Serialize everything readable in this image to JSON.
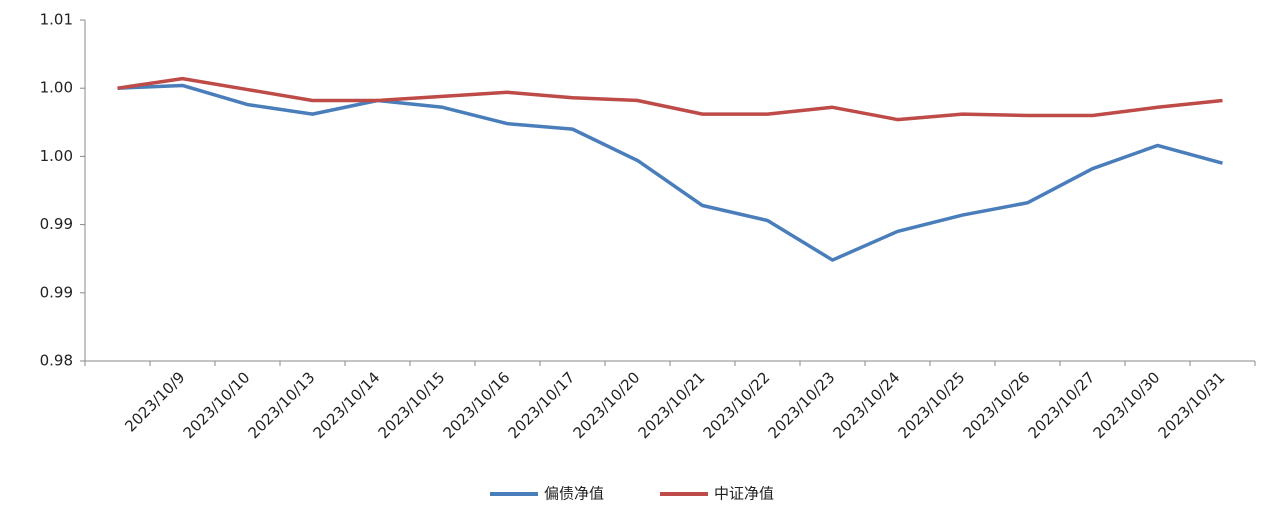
{
  "chart_data": {
    "type": "line",
    "categories": [
      null,
      "2023/10/9",
      "2023/10/10",
      "2023/10/13",
      "2023/10/14",
      "2023/10/15",
      "2023/10/16",
      "2023/10/17",
      "2023/10/20",
      "2023/10/21",
      "2023/10/22",
      "2023/10/23",
      "2023/10/24",
      "2023/10/25",
      "2023/10/26",
      "2023/10/27",
      "2023/10/30",
      "2023/10/31"
    ],
    "series": [
      {
        "name": "偏债净值",
        "color": "#4a7ebb",
        "values": [
          1.005,
          1.0052,
          1.0038,
          1.0031,
          1.0041,
          1.0036,
          1.0024,
          1.002,
          0.9997,
          0.9964,
          0.9953,
          0.9924,
          0.9945,
          0.9957,
          0.9966,
          0.9991,
          1.0008,
          0.9995
        ]
      },
      {
        "name": "中证净值",
        "color": "#be4b48",
        "values": [
          1.005,
          1.0057,
          1.0049,
          1.0041,
          1.0041,
          1.0044,
          1.0047,
          1.0043,
          1.0041,
          1.0031,
          1.0031,
          1.0036,
          1.0027,
          1.0031,
          1.003,
          1.003,
          1.0036,
          1.0041
        ]
      }
    ],
    "ylim": [
      0.985,
      1.01
    ],
    "yticks": [
      {
        "value": 0.985,
        "label": "0.98"
      },
      0.99,
      {
        "value": 0.995,
        "label": "0.99"
      },
      {
        "value": 1,
        "label": "1.00"
      },
      {
        "value": 1.005,
        "label": "1.00"
      },
      1.01
    ],
    "grid": false,
    "legend": "bottom"
  }
}
